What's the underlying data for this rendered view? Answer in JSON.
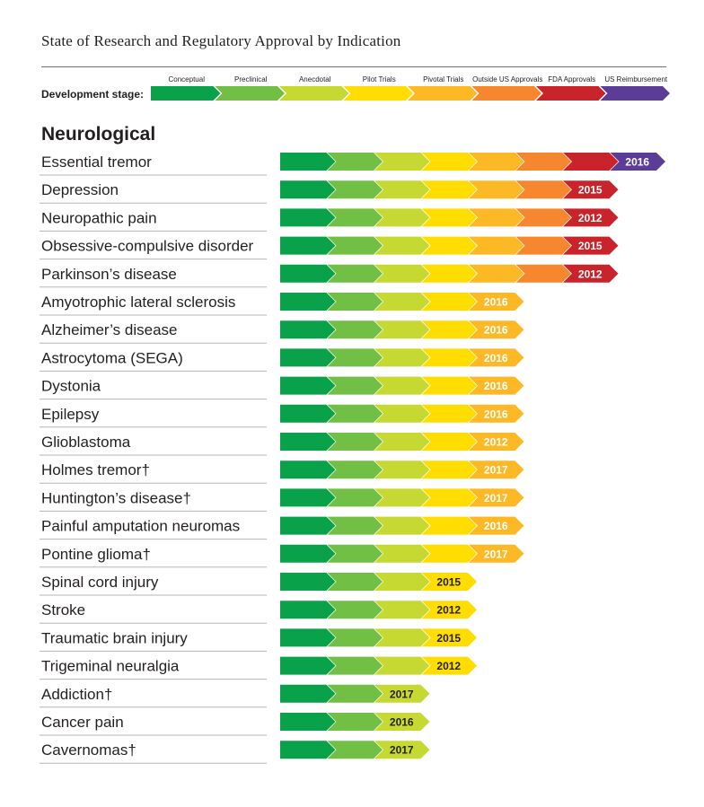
{
  "title": "State of Research and Regulatory Approval by Indication",
  "chart_data": {
    "type": "table",
    "stage_axis_label": "Development stage:",
    "stages": [
      {
        "name": "Conceptual",
        "color": "#0aa14b"
      },
      {
        "name": "Preclinical",
        "color": "#71bf44"
      },
      {
        "name": "Anecdotal",
        "color": "#c6d932"
      },
      {
        "name": "Pilot Trials",
        "color": "#ffdd00"
      },
      {
        "name": "Pivotal Trials",
        "color": "#fdb825"
      },
      {
        "name": "Outside US Approvals",
        "color": "#f6872f"
      },
      {
        "name": "FDA Approvals",
        "color": "#c9232c"
      },
      {
        "name": "US Reimbursement",
        "color": "#5b3d98"
      }
    ],
    "section": "Neurological",
    "rows": [
      {
        "indication": "Essential tremor",
        "stage_reached": 7,
        "year": "2016"
      },
      {
        "indication": "Depression",
        "stage_reached": 6,
        "year": "2015"
      },
      {
        "indication": "Neuropathic pain",
        "stage_reached": 6,
        "year": "2012"
      },
      {
        "indication": "Obsessive-compulsive disorder",
        "stage_reached": 6,
        "year": "2015"
      },
      {
        "indication": "Parkinson’s disease",
        "stage_reached": 6,
        "year": "2012"
      },
      {
        "indication": "Amyotrophic lateral sclerosis",
        "stage_reached": 4,
        "year": "2016"
      },
      {
        "indication": "Alzheimer’s disease",
        "stage_reached": 4,
        "year": "2016"
      },
      {
        "indication": "Astrocytoma (SEGA)",
        "stage_reached": 4,
        "year": "2016"
      },
      {
        "indication": "Dystonia",
        "stage_reached": 4,
        "year": "2016"
      },
      {
        "indication": "Epilepsy",
        "stage_reached": 4,
        "year": "2016"
      },
      {
        "indication": "Glioblastoma",
        "stage_reached": 4,
        "year": "2012"
      },
      {
        "indication": "Holmes tremor†",
        "stage_reached": 4,
        "year": "2017"
      },
      {
        "indication": "Huntington’s disease†",
        "stage_reached": 4,
        "year": "2017"
      },
      {
        "indication": "Painful amputation neuromas",
        "stage_reached": 4,
        "year": "2016"
      },
      {
        "indication": "Pontine glioma†",
        "stage_reached": 4,
        "year": "2017"
      },
      {
        "indication": "Spinal cord injury",
        "stage_reached": 3,
        "year": "2015"
      },
      {
        "indication": "Stroke",
        "stage_reached": 3,
        "year": "2012"
      },
      {
        "indication": "Traumatic brain injury",
        "stage_reached": 3,
        "year": "2015"
      },
      {
        "indication": "Trigeminal neuralgia",
        "stage_reached": 3,
        "year": "2012"
      },
      {
        "indication": "Addiction†",
        "stage_reached": 2,
        "year": "2017"
      },
      {
        "indication": "Cancer pain",
        "stage_reached": 2,
        "year": "2016"
      },
      {
        "indication": "Cavernomas†",
        "stage_reached": 2,
        "year": "2017"
      }
    ]
  }
}
